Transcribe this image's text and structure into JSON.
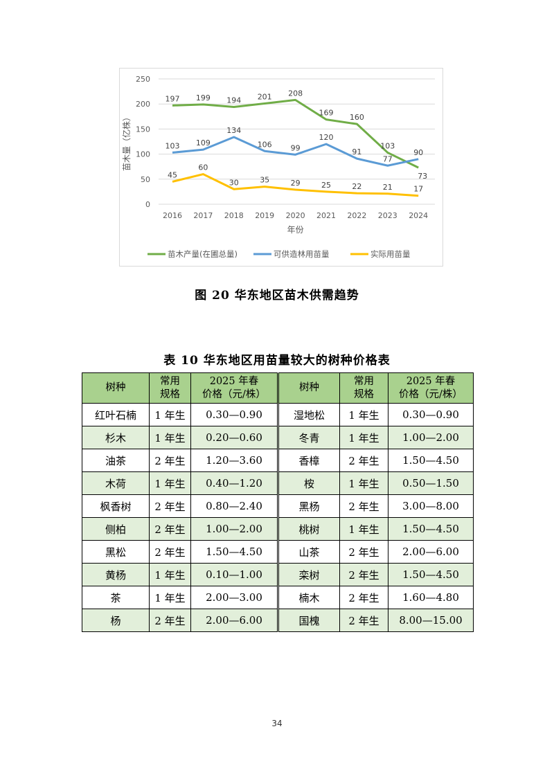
{
  "chart_data": {
    "type": "line",
    "x": [
      2016,
      2017,
      2018,
      2019,
      2020,
      2021,
      2022,
      2023,
      2024
    ],
    "xlabel": "年份",
    "ylabel": "苗木量（亿株）",
    "ylim": [
      0,
      250
    ],
    "yticks": [
      0,
      50,
      100,
      150,
      200,
      250
    ],
    "grid": true,
    "legend_position": "bottom",
    "series": [
      {
        "name": "苗木产量(在圃总量)",
        "color": "#70AD47",
        "values": [
          197,
          199,
          194,
          201,
          208,
          169,
          160,
          103,
          73
        ]
      },
      {
        "name": "可供造林用苗量",
        "color": "#5B9BD5",
        "values": [
          103,
          109,
          134,
          106,
          99,
          120,
          91,
          77,
          90
        ]
      },
      {
        "name": "实际用苗量",
        "color": "#FFC000",
        "values": [
          45,
          60,
          30,
          35,
          29,
          25,
          22,
          21,
          17
        ]
      }
    ]
  },
  "figure_caption": "图 20  华东地区苗木供需趋势",
  "table": {
    "title": "表 10  华东地区用苗量较大的树种价格表",
    "headers": [
      [
        "树种"
      ],
      [
        "常用",
        "规格"
      ],
      [
        "2025 年春",
        "价格（元/株）"
      ],
      [
        "树种"
      ],
      [
        "常用",
        "规格"
      ],
      [
        "2025 年春",
        "价格（元/株）"
      ]
    ],
    "rows": [
      [
        "红叶石楠",
        "1 年生",
        "0.30—0.90",
        "湿地松",
        "1 年生",
        "0.30—0.90"
      ],
      [
        "杉木",
        "1 年生",
        "0.20—0.60",
        "冬青",
        "1 年生",
        "1.00—2.00"
      ],
      [
        "油茶",
        "2 年生",
        "1.20—3.60",
        "香樟",
        "2 年生",
        "1.50—4.50"
      ],
      [
        "木荷",
        "1 年生",
        "0.40—1.20",
        "桉",
        "1 年生",
        "0.50—1.50"
      ],
      [
        "枫香树",
        "2 年生",
        "0.80—2.40",
        "黑杨",
        "2 年生",
        "3.00—8.00"
      ],
      [
        "侧柏",
        "2 年生",
        "1.00—2.00",
        "桃树",
        "1 年生",
        "1.50—4.50"
      ],
      [
        "黑松",
        "2 年生",
        "1.50—4.50",
        "山茶",
        "2 年生",
        "2.00—6.00"
      ],
      [
        "黄杨",
        "1 年生",
        "0.10—1.00",
        "栾树",
        "2 年生",
        "1.50—4.50"
      ],
      [
        "茶",
        "1 年生",
        "2.00—3.00",
        "楠木",
        "2 年生",
        "1.60—4.80"
      ],
      [
        "杨",
        "2 年生",
        "2.00—6.00",
        "国槐",
        "2 年生",
        "8.00—15.00"
      ]
    ],
    "header_color": "#A9D18E",
    "alt_row_color": "#E2EFDA"
  },
  "page_number": "34"
}
